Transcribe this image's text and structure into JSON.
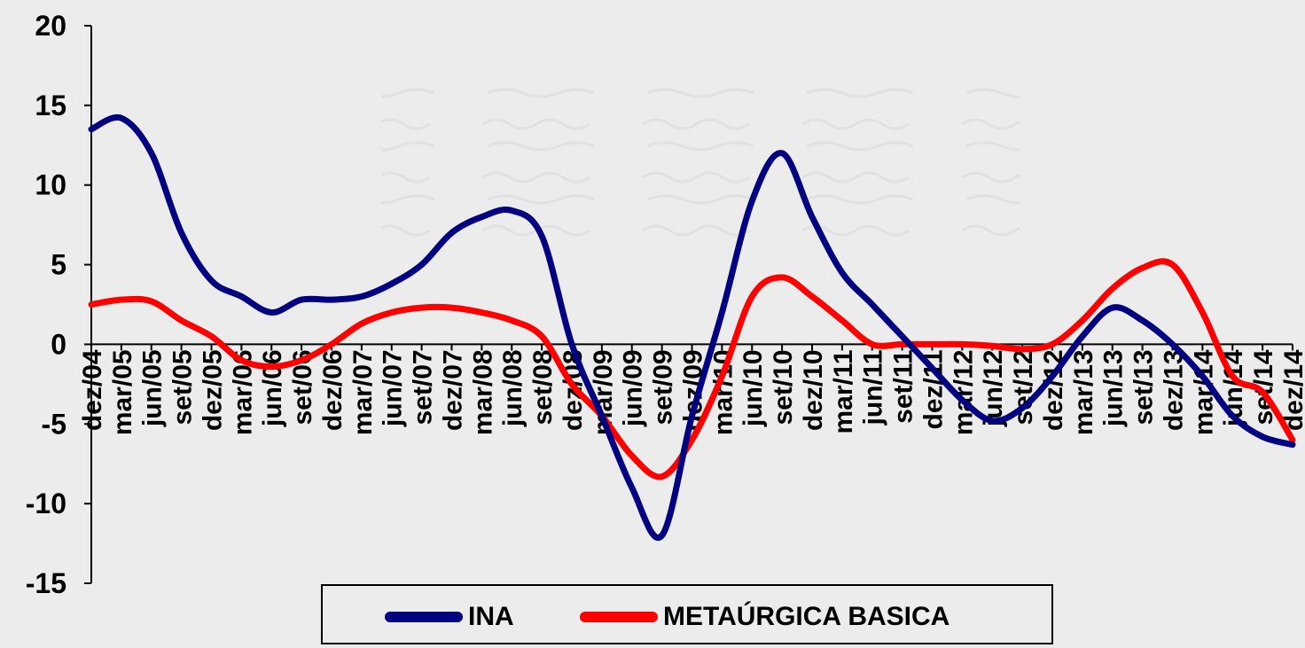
{
  "chart_data": {
    "type": "line",
    "title": "",
    "xlabel": "",
    "ylabel": "",
    "ylim": [
      -15,
      20
    ],
    "y_ticks": [
      20,
      15,
      10,
      5,
      0,
      -5,
      -10,
      -15
    ],
    "x_tick_labels": [
      "dez/04",
      "mar/05",
      "jun/05",
      "set/05",
      "dez/05",
      "mar/06",
      "jun/06",
      "set/06",
      "dez/06",
      "mar/07",
      "jun/07",
      "set/07",
      "dez/07",
      "mar/08",
      "jun/08",
      "set/08",
      "dez/08",
      "mar/09",
      "jun/09",
      "set/09",
      "dez/09",
      "mar/10",
      "jun/10",
      "set/10",
      "dez/10",
      "mar/11",
      "jun/11",
      "set/11",
      "dez/11",
      "mar/12",
      "jun/12",
      "set/12",
      "dez/12",
      "mar/13",
      "jun/13",
      "set/13",
      "dez/13",
      "mar/14",
      "jun/14",
      "set/14",
      "dez/14"
    ],
    "grid": false,
    "legend_position": "bottom",
    "series": [
      {
        "name": "INA",
        "color": "#000080",
        "values": [
          13.5,
          14.2,
          12.0,
          7.0,
          4.0,
          3.0,
          2.0,
          2.8,
          2.8,
          3.0,
          3.8,
          5.0,
          7.0,
          8.0,
          8.4,
          6.8,
          0.0,
          -4.5,
          -9.0,
          -12.0,
          -4.5,
          2.0,
          9.0,
          12.0,
          8.0,
          4.5,
          2.5,
          0.5,
          -1.5,
          -3.5,
          -4.8,
          -4.0,
          -2.0,
          0.5,
          2.3,
          1.5,
          0.0,
          -2.0,
          -4.5,
          -5.8,
          -6.3
        ]
      },
      {
        "name": "METAÚRGICA BASICA",
        "color": "#ff0000",
        "values": [
          2.5,
          2.8,
          2.7,
          1.5,
          0.5,
          -1.0,
          -1.4,
          -1.0,
          0.0,
          1.3,
          2.0,
          2.3,
          2.3,
          2.0,
          1.5,
          0.5,
          -2.5,
          -4.5,
          -7.0,
          -8.3,
          -6.0,
          -2.0,
          3.0,
          4.2,
          3.0,
          1.5,
          0.0,
          0.0,
          0.0,
          0.0,
          -0.1,
          -0.3,
          0.0,
          1.5,
          3.5,
          4.8,
          5.0,
          2.0,
          -2.0,
          -3.0,
          -6.0
        ]
      }
    ]
  },
  "legend": {
    "ina_label": "INA",
    "ina_color": "#000080",
    "metal_label": "METAÚRGICA BASICA",
    "metal_color": "#ff0000"
  }
}
